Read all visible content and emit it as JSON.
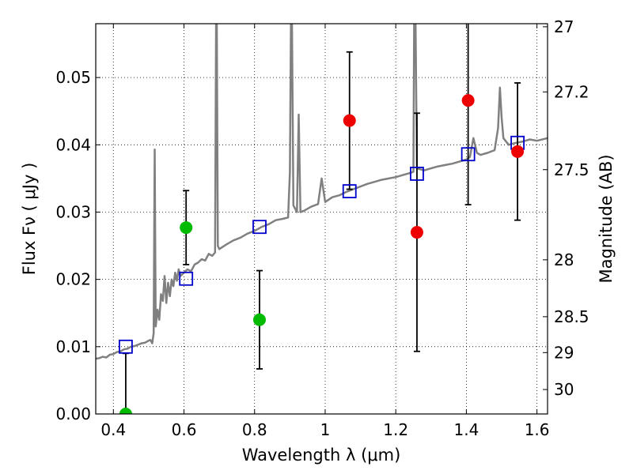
{
  "chart_data": {
    "type": "scatter",
    "xlabel": "Wavelength  λ (μm)",
    "ylabel": "Flux  Fν  ( μJy )",
    "ylabel_right": "Magnitude (AB)",
    "xlim": [
      0.35,
      1.63
    ],
    "ylim": [
      0.0,
      0.058
    ],
    "grid": true,
    "x_ticks": [
      {
        "value": 0.4,
        "label": "0.4"
      },
      {
        "value": 0.6,
        "label": "0.6"
      },
      {
        "value": 0.8,
        "label": "0.8"
      },
      {
        "value": 1.0,
        "label": "1"
      },
      {
        "value": 1.2,
        "label": "1.2"
      },
      {
        "value": 1.4,
        "label": "1.4"
      },
      {
        "value": 1.6,
        "label": "1.6"
      }
    ],
    "y_ticks": [
      {
        "value": 0.0,
        "label": "0.00"
      },
      {
        "value": 0.01,
        "label": "0.01"
      },
      {
        "value": 0.02,
        "label": "0.02"
      },
      {
        "value": 0.03,
        "label": "0.03"
      },
      {
        "value": 0.04,
        "label": "0.04"
      },
      {
        "value": 0.05,
        "label": "0.05"
      }
    ],
    "right_ticks": [
      {
        "value": 27.0,
        "label": "27"
      },
      {
        "value": 27.2,
        "label": "27.2"
      },
      {
        "value": 27.5,
        "label": "27.5"
      },
      {
        "value": 28.0,
        "label": "28"
      },
      {
        "value": 28.5,
        "label": "28.5"
      },
      {
        "value": 29.0,
        "label": "29"
      },
      {
        "value": 30.0,
        "label": "30"
      }
    ],
    "model_spectrum": {
      "color": "#808080",
      "points": [
        [
          0.35,
          0.0082
        ],
        [
          0.36,
          0.0083
        ],
        [
          0.37,
          0.0085
        ],
        [
          0.38,
          0.0084
        ],
        [
          0.39,
          0.0088
        ],
        [
          0.4,
          0.0089
        ],
        [
          0.41,
          0.0092
        ],
        [
          0.42,
          0.0093
        ],
        [
          0.43,
          0.0096
        ],
        [
          0.44,
          0.0097
        ],
        [
          0.45,
          0.01
        ],
        [
          0.46,
          0.0101
        ],
        [
          0.47,
          0.0103
        ],
        [
          0.48,
          0.0105
        ],
        [
          0.49,
          0.0106
        ],
        [
          0.5,
          0.0109
        ],
        [
          0.505,
          0.011
        ],
        [
          0.51,
          0.0105
        ],
        [
          0.514,
          0.012
        ],
        [
          0.517,
          0.0393
        ],
        [
          0.52,
          0.013
        ],
        [
          0.525,
          0.0155
        ],
        [
          0.53,
          0.014
        ],
        [
          0.535,
          0.0178
        ],
        [
          0.54,
          0.0168
        ],
        [
          0.545,
          0.0205
        ],
        [
          0.55,
          0.0165
        ],
        [
          0.555,
          0.0195
        ],
        [
          0.56,
          0.0175
        ],
        [
          0.565,
          0.02
        ],
        [
          0.57,
          0.019
        ],
        [
          0.575,
          0.021
        ],
        [
          0.58,
          0.0198
        ],
        [
          0.585,
          0.0215
        ],
        [
          0.59,
          0.0205
        ],
        [
          0.6,
          0.021
        ],
        [
          0.61,
          0.0215
        ],
        [
          0.62,
          0.0212
        ],
        [
          0.63,
          0.0222
        ],
        [
          0.64,
          0.0225
        ],
        [
          0.65,
          0.023
        ],
        [
          0.66,
          0.0228
        ],
        [
          0.67,
          0.0238
        ],
        [
          0.68,
          0.0235
        ],
        [
          0.688,
          0.024
        ],
        [
          0.691,
          0.058
        ],
        [
          0.693,
          0.058
        ],
        [
          0.696,
          0.025
        ],
        [
          0.7,
          0.0245
        ],
        [
          0.72,
          0.0252
        ],
        [
          0.74,
          0.0258
        ],
        [
          0.76,
          0.0262
        ],
        [
          0.78,
          0.0268
        ],
        [
          0.8,
          0.0272
        ],
        [
          0.82,
          0.0278
        ],
        [
          0.84,
          0.0282
        ],
        [
          0.86,
          0.0288
        ],
        [
          0.88,
          0.029
        ],
        [
          0.895,
          0.0292
        ],
        [
          0.9,
          0.036
        ],
        [
          0.903,
          0.058
        ],
        [
          0.906,
          0.058
        ],
        [
          0.91,
          0.031
        ],
        [
          0.92,
          0.03
        ],
        [
          0.925,
          0.0445
        ],
        [
          0.93,
          0.03
        ],
        [
          0.94,
          0.0302
        ],
        [
          0.96,
          0.0308
        ],
        [
          0.98,
          0.0312
        ],
        [
          0.99,
          0.035
        ],
        [
          1.0,
          0.0315
        ],
        [
          1.02,
          0.0322
        ],
        [
          1.04,
          0.0325
        ],
        [
          1.06,
          0.033
        ],
        [
          1.08,
          0.0334
        ],
        [
          1.1,
          0.0338
        ],
        [
          1.12,
          0.0342
        ],
        [
          1.14,
          0.0345
        ],
        [
          1.16,
          0.0348
        ],
        [
          1.18,
          0.035
        ],
        [
          1.2,
          0.0352
        ],
        [
          1.22,
          0.0355
        ],
        [
          1.24,
          0.0358
        ],
        [
          1.25,
          0.036
        ],
        [
          1.252,
          0.058
        ],
        [
          1.256,
          0.058
        ],
        [
          1.26,
          0.0365
        ],
        [
          1.28,
          0.0362
        ],
        [
          1.3,
          0.0365
        ],
        [
          1.32,
          0.0368
        ],
        [
          1.34,
          0.037
        ],
        [
          1.36,
          0.0372
        ],
        [
          1.38,
          0.0375
        ],
        [
          1.4,
          0.0378
        ],
        [
          1.41,
          0.0382
        ],
        [
          1.42,
          0.041
        ],
        [
          1.43,
          0.0388
        ],
        [
          1.44,
          0.0385
        ],
        [
          1.46,
          0.0388
        ],
        [
          1.48,
          0.0392
        ],
        [
          1.49,
          0.0425
        ],
        [
          1.495,
          0.0485
        ],
        [
          1.5,
          0.044
        ],
        [
          1.505,
          0.041
        ],
        [
          1.52,
          0.04
        ],
        [
          1.54,
          0.0403
        ],
        [
          1.56,
          0.0405
        ],
        [
          1.58,
          0.0408
        ],
        [
          1.6,
          0.0406
        ],
        [
          1.63,
          0.041
        ]
      ]
    },
    "series": [
      {
        "marker": "square",
        "color": "#0000cc",
        "points": [
          {
            "x": 0.435,
            "y": 0.01
          },
          {
            "x": 0.606,
            "y": 0.0201
          },
          {
            "x": 0.814,
            "y": 0.0278
          },
          {
            "x": 1.069,
            "y": 0.0331
          },
          {
            "x": 1.26,
            "y": 0.0357
          },
          {
            "x": 1.405,
            "y": 0.0386
          },
          {
            "x": 1.545,
            "y": 0.0403
          }
        ]
      },
      {
        "marker": "circle",
        "color": "#00bb00",
        "points": [
          {
            "x": 0.435,
            "y": 0.0,
            "yerr": 0.009
          },
          {
            "x": 0.606,
            "y": 0.0277,
            "yerr": 0.0055
          },
          {
            "x": 0.814,
            "y": 0.014,
            "yerr": 0.0073
          }
        ]
      },
      {
        "marker": "circle",
        "color": "#ee0000",
        "points": [
          {
            "x": 1.069,
            "y": 0.0436,
            "yerr": 0.0102
          },
          {
            "x": 1.26,
            "y": 0.027,
            "yerr": 0.0177
          },
          {
            "x": 1.405,
            "y": 0.0466,
            "yerr": 0.0155
          },
          {
            "x": 1.545,
            "y": 0.039,
            "yerr": 0.0102
          }
        ]
      }
    ]
  }
}
